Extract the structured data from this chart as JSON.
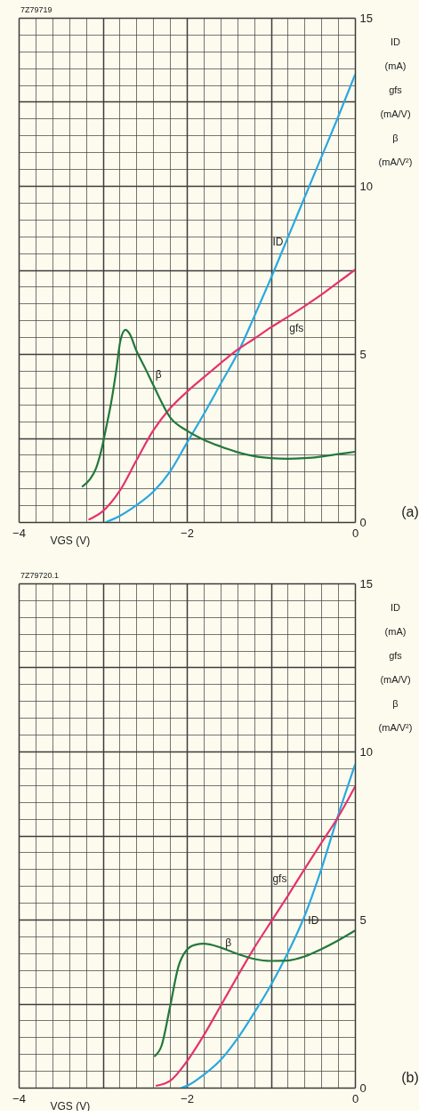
{
  "chart_data": [
    {
      "type": "line",
      "xlabel": "VGS (V)",
      "ylabel": "ID\n(mA)\ngfs\n(mA/V)\nβ\n(mA/V²)",
      "annotations": [
        "7Z79719",
        "(a)"
      ],
      "xlim": [
        -4,
        0
      ],
      "ylim": [
        0,
        15
      ],
      "grid": true,
      "xticks": [
        -4,
        {
          "value": -3.8,
          "label": null
        },
        {
          "value": -3.6,
          "label": null
        },
        {
          "value": -3.4,
          "label": null
        },
        {
          "value": -3.2,
          "label": null
        },
        {
          "value": -3,
          "label": null
        },
        {
          "value": -2.8,
          "label": null
        },
        {
          "value": -2.6,
          "label": null
        },
        {
          "value": -2.4,
          "label": null
        },
        {
          "value": -2.2,
          "label": null
        },
        -2,
        {
          "value": -1.8,
          "label": null
        },
        {
          "value": -1.6,
          "label": null
        },
        {
          "value": -1.4,
          "label": null
        },
        {
          "value": -1.2,
          "label": null
        },
        {
          "value": -1,
          "label": null
        },
        {
          "value": -0.8,
          "label": null
        },
        {
          "value": -0.6,
          "label": null
        },
        {
          "value": -0.4,
          "label": null
        },
        {
          "value": -0.2,
          "label": null
        },
        0
      ],
      "yticks": [
        0,
        {
          "value": 0.5,
          "label": null
        },
        {
          "value": 1,
          "label": null
        },
        {
          "value": 1.5,
          "label": null
        },
        {
          "value": 2,
          "label": null
        },
        {
          "value": 2.5,
          "label": null
        },
        {
          "value": 3,
          "label": null
        },
        {
          "value": 3.5,
          "label": null
        },
        {
          "value": 4,
          "label": null
        },
        {
          "value": 4.5,
          "label": null
        },
        5,
        {
          "value": 5.5,
          "label": null
        },
        {
          "value": 6,
          "label": null
        },
        {
          "value": 6.5,
          "label": null
        },
        {
          "value": 7,
          "label": null
        },
        {
          "value": 7.5,
          "label": null
        },
        {
          "value": 8,
          "label": null
        },
        {
          "value": 8.5,
          "label": null
        },
        {
          "value": 9,
          "label": null
        },
        {
          "value": 9.5,
          "label": null
        },
        10,
        {
          "value": 10.5,
          "label": null
        },
        {
          "value": 11,
          "label": null
        },
        {
          "value": 11.5,
          "label": null
        },
        {
          "value": 12,
          "label": null
        },
        {
          "value": 12.5,
          "label": null
        },
        {
          "value": 13,
          "label": null
        },
        {
          "value": 13.5,
          "label": null
        },
        {
          "value": 14,
          "label": null
        },
        {
          "value": 14.5,
          "label": null
        },
        15
      ],
      "series": [
        {
          "name": "ID",
          "color": "#2aa8e0",
          "x": [
            -2.96,
            -2.8,
            -2.6,
            -2.4,
            -2.2,
            -2.0,
            -1.8,
            -1.6,
            -1.4,
            -1.2,
            -1.0,
            -0.8,
            -0.6,
            -0.4,
            -0.2,
            0
          ],
          "values": [
            0,
            0.18,
            0.5,
            0.9,
            1.5,
            2.35,
            3.2,
            4.1,
            5.0,
            6.1,
            7.25,
            8.45,
            9.65,
            10.85,
            12.05,
            13.3
          ]
        },
        {
          "name": "gfs",
          "color": "#e5336c",
          "x": [
            -3.16,
            -3.0,
            -2.8,
            -2.6,
            -2.4,
            -2.2,
            -2.0,
            -1.8,
            -1.6,
            -1.4,
            -1.2,
            -1.0,
            -0.8,
            -0.6,
            -0.4,
            -0.2,
            0
          ],
          "values": [
            0.08,
            0.32,
            0.92,
            1.83,
            2.72,
            3.38,
            3.87,
            4.3,
            4.72,
            5.12,
            5.45,
            5.79,
            6.1,
            6.42,
            6.76,
            7.13,
            7.5
          ]
        },
        {
          "name": "β",
          "color": "#23783a",
          "x": [
            -3.24,
            -3.15,
            -3.08,
            -3.02,
            -2.96,
            -2.9,
            -2.84,
            -2.79,
            -2.73,
            -2.68,
            -2.6,
            -2.5,
            -2.4,
            -2.2,
            -2.0,
            -1.8,
            -1.6,
            -1.4,
            -1.2,
            -1.0,
            -0.8,
            -0.6,
            -0.4,
            -0.2,
            0
          ],
          "values": [
            1.06,
            1.28,
            1.6,
            2.1,
            2.8,
            3.55,
            4.5,
            5.4,
            5.72,
            5.6,
            5.1,
            4.6,
            4.08,
            3.12,
            2.72,
            2.45,
            2.25,
            2.08,
            1.96,
            1.9,
            1.88,
            1.9,
            1.95,
            2.02,
            2.09
          ]
        }
      ]
    },
    {
      "type": "line",
      "xlabel": "VGS (V)",
      "ylabel": "ID\n(mA)\ngfs\n(mA/V)\nβ\n(mA/V²)",
      "annotations": [
        "7Z79720.1",
        "(b)"
      ],
      "xlim": [
        -4,
        0
      ],
      "ylim": [
        0,
        15
      ],
      "grid": true,
      "xticks": [
        -4,
        {
          "value": -3.8,
          "label": null
        },
        {
          "value": -3.6,
          "label": null
        },
        {
          "value": -3.4,
          "label": null
        },
        {
          "value": -3.2,
          "label": null
        },
        {
          "value": -3,
          "label": null
        },
        {
          "value": -2.8,
          "label": null
        },
        {
          "value": -2.6,
          "label": null
        },
        {
          "value": -2.4,
          "label": null
        },
        {
          "value": -2.2,
          "label": null
        },
        -2,
        {
          "value": -1.8,
          "label": null
        },
        {
          "value": -1.6,
          "label": null
        },
        {
          "value": -1.4,
          "label": null
        },
        {
          "value": -1.2,
          "label": null
        },
        {
          "value": -1,
          "label": null
        },
        {
          "value": -0.8,
          "label": null
        },
        {
          "value": -0.6,
          "label": null
        },
        {
          "value": -0.4,
          "label": null
        },
        {
          "value": -0.2,
          "label": null
        },
        0
      ],
      "yticks": [
        0,
        {
          "value": 0.5,
          "label": null
        },
        {
          "value": 1,
          "label": null
        },
        {
          "value": 1.5,
          "label": null
        },
        {
          "value": 2,
          "label": null
        },
        {
          "value": 2.5,
          "label": null
        },
        {
          "value": 3,
          "label": null
        },
        {
          "value": 3.5,
          "label": null
        },
        {
          "value": 4,
          "label": null
        },
        {
          "value": 4.5,
          "label": null
        },
        5,
        {
          "value": 5.5,
          "label": null
        },
        {
          "value": 6,
          "label": null
        },
        {
          "value": 6.5,
          "label": null
        },
        {
          "value": 7,
          "label": null
        },
        {
          "value": 7.5,
          "label": null
        },
        {
          "value": 8,
          "label": null
        },
        {
          "value": 8.5,
          "label": null
        },
        {
          "value": 9,
          "label": null
        },
        {
          "value": 9.5,
          "label": null
        },
        10,
        {
          "value": 10.5,
          "label": null
        },
        {
          "value": 11,
          "label": null
        },
        {
          "value": 11.5,
          "label": null
        },
        {
          "value": 12,
          "label": null
        },
        {
          "value": 12.5,
          "label": null
        },
        {
          "value": 13,
          "label": null
        },
        {
          "value": 13.5,
          "label": null
        },
        {
          "value": 14,
          "label": null
        },
        {
          "value": 14.5,
          "label": null
        },
        15
      ],
      "series": [
        {
          "name": "ID",
          "color": "#2aa8e0",
          "x": [
            -2.06,
            -2.0,
            -1.8,
            -1.6,
            -1.4,
            -1.2,
            -1.0,
            -0.8,
            -0.6,
            -0.4,
            -0.2,
            0
          ],
          "values": [
            0,
            0.05,
            0.38,
            0.82,
            1.45,
            2.22,
            3.05,
            4.0,
            5.1,
            6.5,
            8.1,
            9.6
          ]
        },
        {
          "name": "gfs",
          "color": "#e5336c",
          "x": [
            -2.36,
            -2.2,
            -2.0,
            -1.8,
            -1.6,
            -1.4,
            -1.2,
            -1.0,
            -0.8,
            -0.6,
            -0.4,
            -0.2,
            0
          ],
          "values": [
            0.06,
            0.2,
            0.78,
            1.55,
            2.42,
            3.3,
            4.15,
            4.93,
            5.7,
            6.5,
            7.28,
            8.05,
            8.95
          ]
        },
        {
          "name": "β",
          "color": "#23783a",
          "x": [
            -2.38,
            -2.3,
            -2.2,
            -2.1,
            -2.0,
            -1.9,
            -1.8,
            -1.6,
            -1.4,
            -1.2,
            -1.0,
            -0.8,
            -0.6,
            -0.4,
            -0.2,
            0
          ],
          "values": [
            0.94,
            1.25,
            2.4,
            3.6,
            4.1,
            4.25,
            4.28,
            4.17,
            3.98,
            3.83,
            3.77,
            3.78,
            3.9,
            4.12,
            4.38,
            4.67
          ]
        }
      ]
    }
  ]
}
